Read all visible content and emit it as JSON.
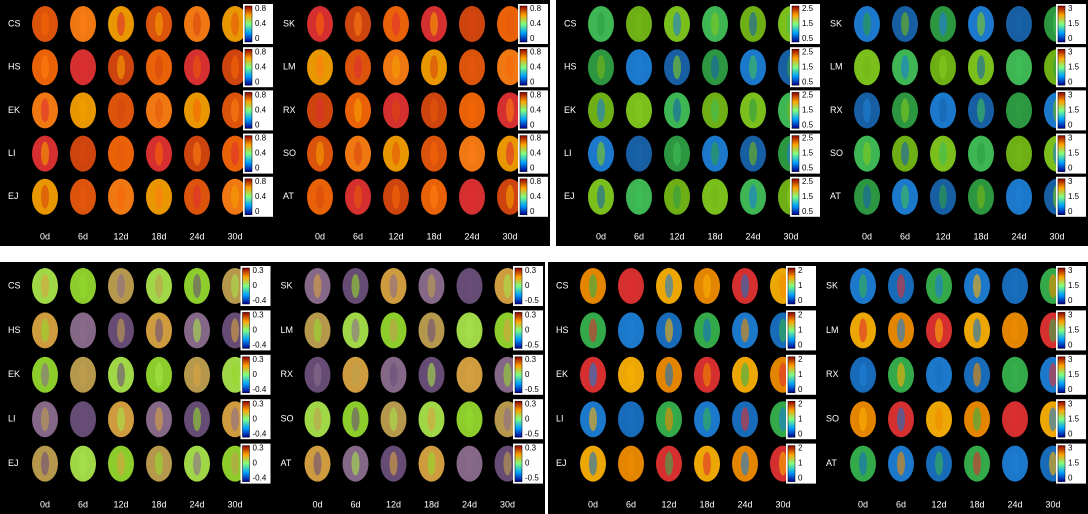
{
  "panels": [
    {
      "left_species": [
        "CS",
        "HS",
        "EK",
        "LI",
        "EJ"
      ],
      "right_species": [
        "SK",
        "LM",
        "RX",
        "SO",
        "AT"
      ],
      "days": [
        "0d",
        "6d",
        "12d",
        "18d",
        "24d",
        "30d"
      ],
      "left_scale": [
        "0.8",
        "0.4",
        "0"
      ],
      "right_scale": [
        "0.8",
        "0.4",
        "0"
      ]
    },
    {
      "left_species": [
        "CS",
        "HS",
        "EK",
        "LI",
        "EJ"
      ],
      "right_species": [
        "SK",
        "LM",
        "RX",
        "SO",
        "AT"
      ],
      "days": [
        "0d",
        "6d",
        "12d",
        "18d",
        "24d",
        "30d"
      ],
      "left_scale": [
        "2.5",
        "1.5",
        "0.5"
      ],
      "right_scale": [
        "3",
        "1.5",
        "0"
      ]
    },
    {
      "left_species": [
        "CS",
        "HS",
        "EK",
        "LI",
        "EJ"
      ],
      "right_species": [
        "SK",
        "LM",
        "RX",
        "SO",
        "AT"
      ],
      "days": [
        "0d",
        "6d",
        "12d",
        "18d",
        "24d",
        "30d"
      ],
      "left_scale": [
        "0.3",
        "0",
        "-0.4"
      ],
      "right_scale": [
        "0.3",
        "0",
        "-0.5"
      ]
    },
    {
      "left_species": [
        "CS",
        "HS",
        "EK",
        "LI",
        "EJ"
      ],
      "right_species": [
        "SK",
        "LM",
        "RX",
        "SO",
        "AT"
      ],
      "days": [
        "0d",
        "6d",
        "12d",
        "18d",
        "24d",
        "30d"
      ],
      "left_scale": [
        "2",
        "1",
        "0"
      ],
      "right_scale": [
        "3",
        "1.5",
        "0"
      ]
    }
  ]
}
